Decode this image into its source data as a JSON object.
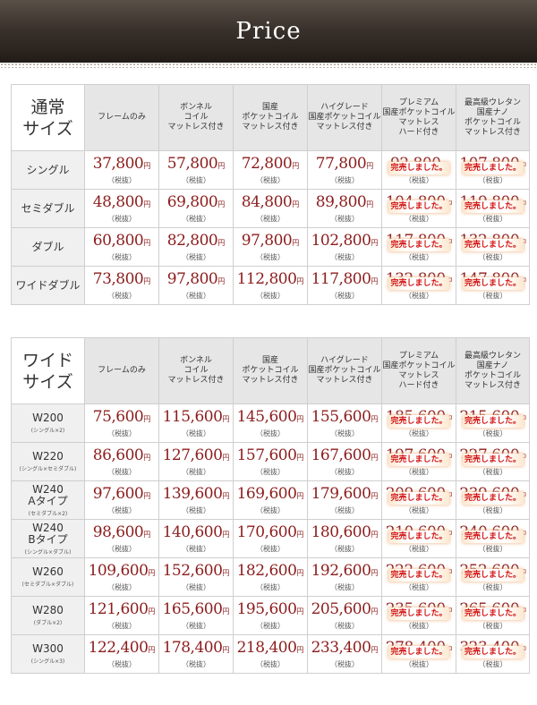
{
  "title": "Price",
  "columns": [
    [
      "フレームのみ"
    ],
    [
      "ボンネル",
      "コイル",
      "マットレス付き"
    ],
    [
      "国産",
      "ポケットコイル",
      "マットレス付き"
    ],
    [
      "ハイグレード",
      "国産ポケットコイル",
      "マットレス付き"
    ],
    [
      "プレミアム",
      "国産ポケットコイル",
      "マットレス",
      "ハード付き"
    ],
    [
      "最高級ウレタン",
      "国産ナノ",
      "ポケットコイル",
      "マットレス付き"
    ]
  ],
  "yen": "円",
  "tax_label": "（税抜）",
  "sold_out": "完売しました。",
  "normal": {
    "corner": [
      "通常",
      "サイズ"
    ],
    "rows": [
      {
        "name": "シングル",
        "sub": "",
        "prices": [
          "37,800",
          "57,800",
          "72,800",
          "77,800",
          "92,800",
          "107,800"
        ]
      },
      {
        "name": "セミダブル",
        "sub": "",
        "prices": [
          "48,800",
          "69,800",
          "84,800",
          "89,800",
          "104,800",
          "119,800"
        ]
      },
      {
        "name": "ダブル",
        "sub": "",
        "prices": [
          "60,800",
          "82,800",
          "97,800",
          "102,800",
          "117,800",
          "132,800"
        ]
      },
      {
        "name": "ワイドダブル",
        "sub": "",
        "prices": [
          "73,800",
          "97,800",
          "112,800",
          "117,800",
          "132,800",
          "147,800"
        ]
      }
    ]
  },
  "wide": {
    "corner": [
      "ワイド",
      "サイズ"
    ],
    "rows": [
      {
        "name": "W200",
        "sub": "(シングル×2)",
        "prices": [
          "75,600",
          "115,600",
          "145,600",
          "155,600",
          "185,600",
          "215,600"
        ]
      },
      {
        "name": "W220",
        "sub": "(シングル×セミダブル)",
        "prices": [
          "86,600",
          "127,600",
          "157,600",
          "167,600",
          "197,600",
          "227,600"
        ]
      },
      {
        "name": "W240\nAタイプ",
        "sub": "(セミダブル×2)",
        "prices": [
          "97,600",
          "139,600",
          "169,600",
          "179,600",
          "209,600",
          "239,600"
        ]
      },
      {
        "name": "W240\nBタイプ",
        "sub": "(シングル×ダブル)",
        "prices": [
          "98,600",
          "140,600",
          "170,600",
          "180,600",
          "210,600",
          "240,600"
        ]
      },
      {
        "name": "W260",
        "sub": "(セミダブル×ダブル)",
        "prices": [
          "109,600",
          "152,600",
          "182,600",
          "192,600",
          "222,600",
          "252,600"
        ]
      },
      {
        "name": "W280",
        "sub": "(ダブル×2)",
        "prices": [
          "121,600",
          "165,600",
          "195,600",
          "205,600",
          "235,600",
          "265,600"
        ]
      },
      {
        "name": "W300",
        "sub": "(シングル×3)",
        "prices": [
          "122,400",
          "178,400",
          "218,400",
          "233,400",
          "278,400",
          "323,400"
        ]
      }
    ]
  }
}
